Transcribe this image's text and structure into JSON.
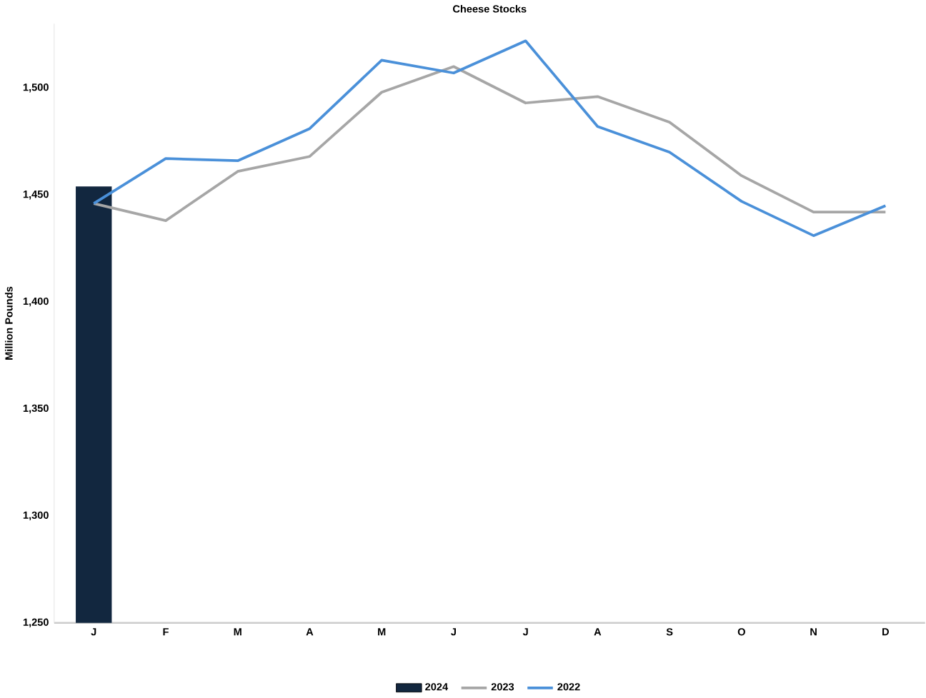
{
  "chart_data": {
    "type": "line",
    "title": "Cheese Stocks",
    "ylabel": "Million Pounds",
    "categories": [
      "J",
      "F",
      "M",
      "A",
      "M",
      "J",
      "J",
      "A",
      "S",
      "O",
      "N",
      "D"
    ],
    "series": [
      {
        "name": "2024",
        "type": "bar",
        "color": "#12273f",
        "values": [
          1454,
          null,
          null,
          null,
          null,
          null,
          null,
          null,
          null,
          null,
          null,
          null
        ]
      },
      {
        "name": "2023",
        "color": "#a6a6a6",
        "values": [
          1446,
          1438,
          1461,
          1468,
          1498,
          1510,
          1493,
          1496,
          1484,
          1459,
          1442,
          1442
        ]
      },
      {
        "name": "2022",
        "color": "#4a90d9",
        "values": [
          1446,
          1467,
          1466,
          1481,
          1513,
          1507,
          1522,
          1482,
          1470,
          1447,
          1431,
          1445
        ]
      }
    ],
    "ylim": [
      1250,
      1530
    ],
    "yticks": [
      {
        "value": 1250,
        "label": "1,250"
      },
      {
        "value": 1300,
        "label": "1,300"
      },
      {
        "value": 1350,
        "label": "1,350"
      },
      {
        "value": 1400,
        "label": "1,400"
      },
      {
        "value": 1450,
        "label": "1,450"
      },
      {
        "value": 1500,
        "label": "1,500"
      }
    ],
    "grid": false,
    "legend": "bottom"
  }
}
